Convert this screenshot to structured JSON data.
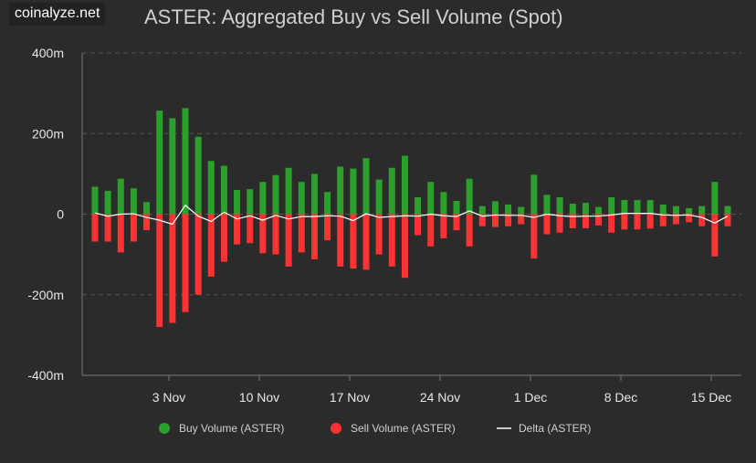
{
  "brand": "coinalyze.net",
  "chart_data": {
    "type": "bar",
    "title": "ASTER: Aggregated Buy vs Sell Volume (Spot)",
    "xlabel": "",
    "ylabel": "",
    "ylim": [
      -400,
      400
    ],
    "y_ticks": [
      400,
      200,
      0,
      -200,
      -400
    ],
    "y_tick_labels": [
      "400m",
      "200m",
      "0",
      "-200m",
      "-400m"
    ],
    "x_ticks": [
      {
        "label": "3 Nov",
        "index": 7
      },
      {
        "label": "10 Nov",
        "index": 14
      },
      {
        "label": "17 Nov",
        "index": 21
      },
      {
        "label": "24 Nov",
        "index": 28
      },
      {
        "label": "1 Dec",
        "index": 35
      },
      {
        "label": "8 Dec",
        "index": 42
      },
      {
        "label": "15 Dec",
        "index": 49
      }
    ],
    "grid": true,
    "legend_position": "bottom",
    "colors": {
      "buy": "#2ca02c",
      "sell": "#ff3333",
      "delta": "#ffffff",
      "grid": "#555555",
      "axis": "#777777"
    },
    "series": [
      {
        "name": "Buy Volume (ASTER)",
        "type": "bar",
        "values": [
          68,
          58,
          88,
          64,
          30,
          257,
          238,
          263,
          192,
          132,
          120,
          60,
          62,
          80,
          97,
          115,
          80,
          100,
          55,
          118,
          113,
          139,
          86,
          115,
          145,
          42,
          80,
          55,
          33,
          88,
          20,
          32,
          24,
          18,
          98,
          48,
          42,
          26,
          28,
          18,
          42,
          35,
          35,
          35,
          24,
          20,
          15,
          20,
          80,
          20
        ]
      },
      {
        "name": "Sell Volume (ASTER)",
        "type": "bar",
        "values": [
          -68,
          -68,
          -95,
          -68,
          -40,
          -280,
          -270,
          -243,
          -200,
          -155,
          -118,
          -75,
          -72,
          -97,
          -100,
          -130,
          -95,
          -112,
          -65,
          -130,
          -135,
          -138,
          -100,
          -130,
          -158,
          -52,
          -80,
          -60,
          -40,
          -80,
          -30,
          -32,
          -30,
          -25,
          -110,
          -50,
          -46,
          -35,
          -35,
          -28,
          -46,
          -38,
          -38,
          -36,
          -30,
          -25,
          -20,
          -30,
          -105,
          -30
        ]
      },
      {
        "name": "Delta (ASTER)",
        "type": "line",
        "values": [
          3,
          -5,
          0,
          1,
          -8,
          -15,
          -25,
          22,
          -5,
          -18,
          5,
          -12,
          -4,
          -15,
          -3,
          -12,
          -6,
          -6,
          -4,
          -5,
          -16,
          1,
          -8,
          -6,
          -4,
          -5,
          0,
          -4,
          -6,
          8,
          -5,
          -2,
          -3,
          -3,
          -8,
          0,
          -4,
          -6,
          -5,
          -5,
          -2,
          2,
          2,
          2,
          -2,
          -3,
          -2,
          -8,
          -22,
          -5
        ]
      }
    ],
    "legend": [
      "Buy Volume (ASTER)",
      "Sell Volume (ASTER)",
      "Delta (ASTER)"
    ]
  }
}
